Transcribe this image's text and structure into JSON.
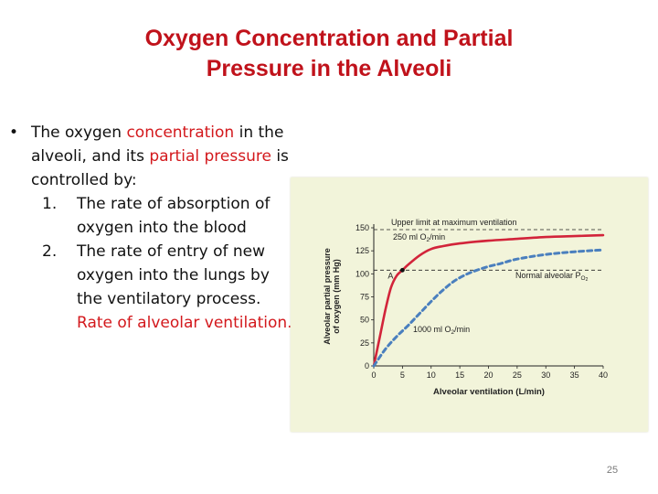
{
  "slide": {
    "title_line1": "Oxygen Concentration and Partial",
    "title_line2": "Pressure in the Alveoli",
    "page_number": "25",
    "accent_color": "#c0121b"
  },
  "bullet": {
    "marker": "•",
    "t1": "The oxygen ",
    "t2": "concentration",
    "t3": " in the alveoli, and its ",
    "t4": "partial pressure",
    "t5": "  is controlled by:"
  },
  "list": [
    {
      "num": "1.",
      "text": "The rate of absorption of oxygen into the blood"
    },
    {
      "num": "2.",
      "text_a": "The rate of entry of new oxygen into the lungs by the ventilatory process. ",
      "text_b": "Rate of alveolar ventilation."
    }
  ],
  "chart_data": {
    "type": "line",
    "xlabel": "Alveolar ventilation (L/min)",
    "ylabel_line1": "Alveolar partial pressure",
    "ylabel_line2": "of oxygen (mm Hg)",
    "xlim": [
      0,
      40
    ],
    "ylim": [
      0,
      150
    ],
    "x_ticks": [
      0,
      5,
      10,
      15,
      20,
      25,
      30,
      35,
      40
    ],
    "y_ticks": [
      0,
      25,
      50,
      75,
      100,
      125,
      150
    ],
    "x_tick_labels": [
      "0",
      "5",
      "10",
      "15",
      "20",
      "25",
      "30",
      "35",
      "40"
    ],
    "y_tick_labels": [
      "0",
      "25",
      "50",
      "75",
      "100",
      "125",
      "150"
    ],
    "series": [
      {
        "name": "250 ml O2/min",
        "style": "solid",
        "color": "#d2243a",
        "x": [
          0,
          1,
          2,
          3,
          4,
          5,
          6,
          8,
          10,
          12,
          15,
          20,
          25,
          30,
          35,
          40
        ],
        "y": [
          0,
          30,
          60,
          85,
          98,
          104,
          110,
          120,
          127,
          130,
          133,
          136,
          138,
          140,
          141,
          142
        ]
      },
      {
        "name": "1000 ml O2/min",
        "style": "dashed",
        "color": "#4a7fbe",
        "x": [
          0,
          2,
          4,
          6,
          8,
          10,
          12,
          14,
          16,
          18,
          20,
          22,
          25,
          30,
          35,
          40
        ],
        "y": [
          0,
          18,
          32,
          44,
          57,
          70,
          82,
          92,
          99,
          104,
          108,
          111,
          116,
          121,
          124,
          126
        ]
      }
    ],
    "reference_lines": [
      {
        "y": 148,
        "label": "Upper limit at maximum ventilation"
      },
      {
        "y": 104,
        "label_prefix": "Normal alveolar P",
        "label_sub": "O",
        "label_sub2": "2"
      }
    ],
    "point": {
      "label": "A",
      "x": 5,
      "y": 104
    },
    "annotations": {
      "upper_curve_prefix": "250 ml O",
      "upper_curve_sub": "2",
      "upper_curve_suffix": "/min",
      "lower_curve_prefix": "1000 ml O",
      "lower_curve_sub": "2",
      "lower_curve_suffix": "/min"
    }
  }
}
